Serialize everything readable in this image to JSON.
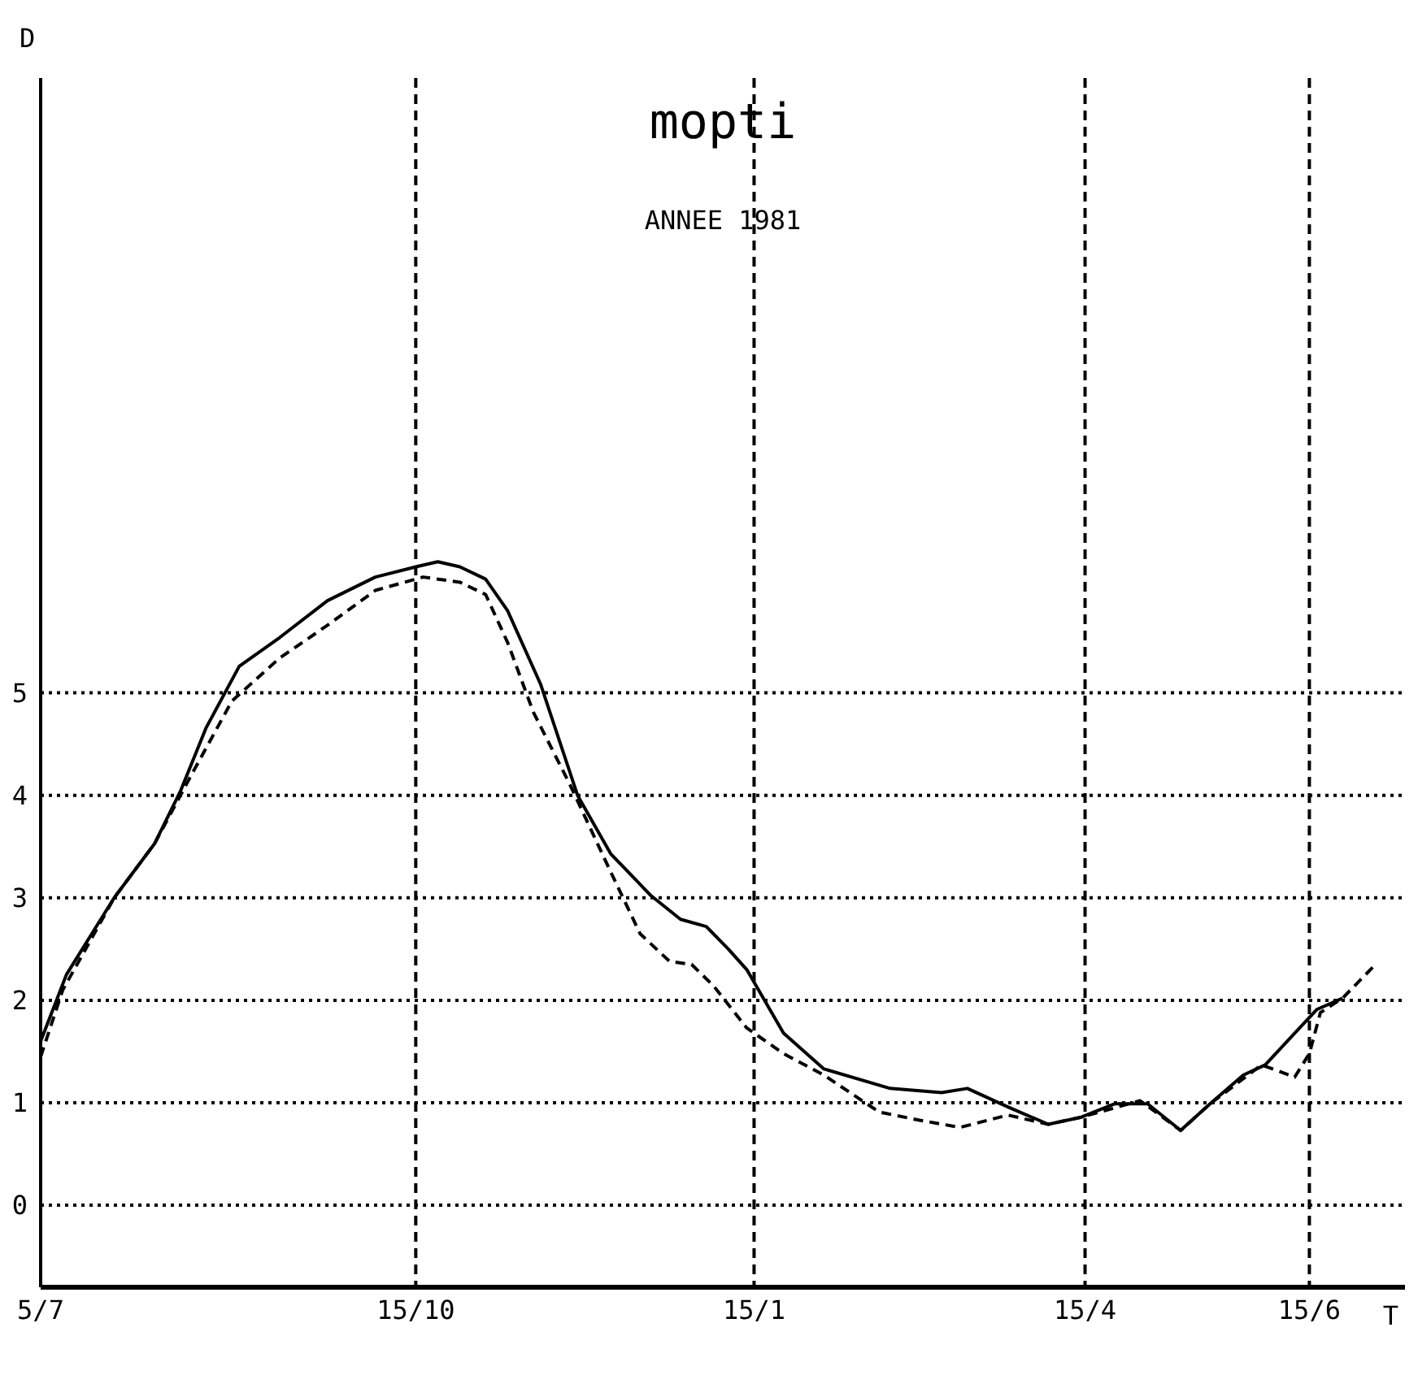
{
  "chart_data": {
    "type": "line",
    "title": "mopti",
    "subtitle": "ANNEE 1981",
    "xlabel": "T",
    "ylabel": "D",
    "xlim": [
      "1981-07-05",
      "1982-07-11"
    ],
    "ylim": [
      -0.8,
      11
    ],
    "xticks": [
      {
        "value": "1981-07-05",
        "label": "5/7"
      },
      {
        "value": "1981-10-15",
        "label": "15/10"
      },
      {
        "value": "1982-01-15",
        "label": "15/1"
      },
      {
        "value": "1982-04-15",
        "label": "15/4"
      },
      {
        "value": "1982-06-15",
        "label": "15/6"
      }
    ],
    "yticks": [
      0,
      1,
      2,
      3,
      4,
      5
    ],
    "grid": true,
    "marker": "none",
    "series": [
      {
        "color": "#000000",
        "line_style": "solid",
        "x": [
          "1981-07-05",
          "1981-07-12",
          "1981-07-25",
          "1981-08-05",
          "1981-08-12",
          "1981-08-19",
          "1981-08-28",
          "1981-09-08",
          "1981-09-21",
          "1981-10-04",
          "1981-10-15",
          "1981-10-21",
          "1981-10-27",
          "1981-11-03",
          "1981-11-09",
          "1981-11-18",
          "1981-11-28",
          "1981-12-07",
          "1981-12-18",
          "1981-12-26",
          "1982-01-02",
          "1982-01-08",
          "1982-01-13",
          "1982-01-23",
          "1982-02-03",
          "1982-02-21",
          "1982-03-07",
          "1982-03-14",
          "1982-03-25",
          "1982-04-05",
          "1982-04-14",
          "1982-04-23",
          "1982-05-02",
          "1982-05-11",
          "1982-05-19",
          "1982-05-28",
          "1982-06-03",
          "1982-06-17",
          "1982-06-24"
        ],
        "values": [
          1.6,
          2.25,
          3.0,
          3.53,
          4.04,
          4.66,
          5.26,
          5.54,
          5.9,
          6.13,
          6.23,
          6.28,
          6.23,
          6.11,
          5.8,
          5.08,
          4.0,
          3.43,
          3.02,
          2.79,
          2.72,
          2.5,
          2.3,
          1.68,
          1.33,
          1.14,
          1.1,
          1.14,
          0.96,
          0.79,
          0.86,
          0.99,
          0.99,
          0.73,
          0.99,
          1.27,
          1.37,
          1.91,
          2.02
        ]
      },
      {
        "color": "#000000",
        "line_style": "dashed",
        "x": [
          "1981-07-05",
          "1981-07-11",
          "1981-07-25",
          "1981-08-05",
          "1981-08-15",
          "1981-08-26",
          "1981-09-08",
          "1981-09-21",
          "1981-10-04",
          "1981-10-17",
          "1981-10-27",
          "1981-11-03",
          "1981-11-09",
          "1981-11-16",
          "1981-11-26",
          "1981-12-06",
          "1981-12-15",
          "1981-12-23",
          "1981-12-29",
          "1982-01-04",
          "1982-01-13",
          "1982-01-23",
          "1982-02-03",
          "1982-02-18",
          "1982-03-01",
          "1982-03-12",
          "1982-03-25",
          "1982-04-05",
          "1982-04-14",
          "1982-04-30",
          "1982-05-11",
          "1982-05-19",
          "1982-06-02",
          "1982-06-11",
          "1982-06-15",
          "1982-06-18",
          "1982-06-24",
          "1982-07-03"
        ],
        "values": [
          1.45,
          2.1,
          3.0,
          3.53,
          4.2,
          4.92,
          5.34,
          5.66,
          6.0,
          6.13,
          6.08,
          5.96,
          5.49,
          4.81,
          4.1,
          3.33,
          2.65,
          2.38,
          2.35,
          2.14,
          1.73,
          1.48,
          1.27,
          0.91,
          0.83,
          0.76,
          0.88,
          0.79,
          0.86,
          1.02,
          0.73,
          0.99,
          1.37,
          1.25,
          1.48,
          1.88,
          2.02,
          2.35
        ]
      }
    ]
  }
}
